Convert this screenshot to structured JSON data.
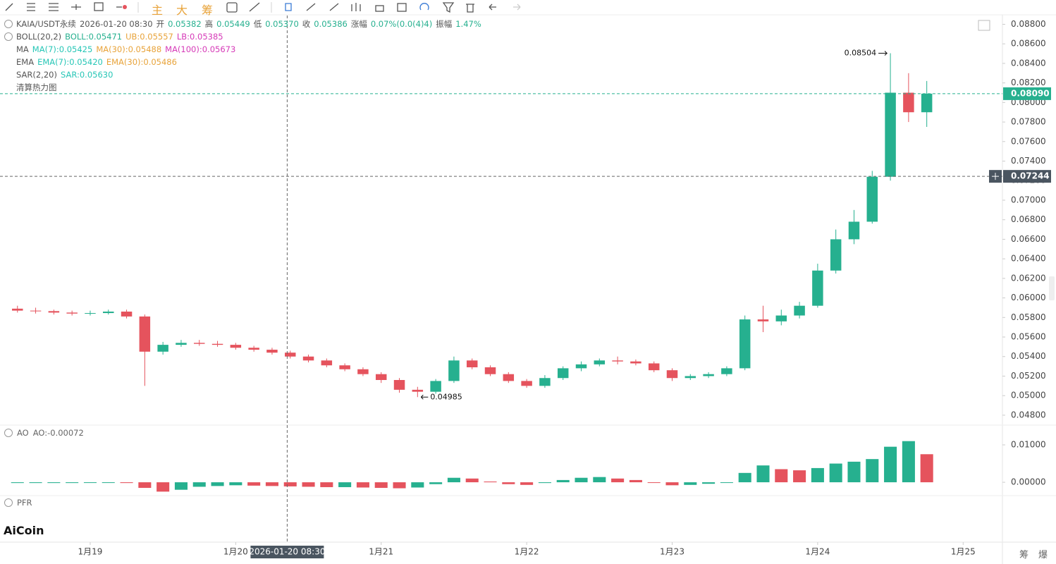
{
  "toolbar": {
    "buttons": [
      "主",
      "大",
      "筹"
    ]
  },
  "legend": {
    "symbol": "KAIA/USDT永续",
    "time": "2026-01-20 08:30",
    "open_label": "开",
    "open": "0.05382",
    "high_label": "高",
    "high": "0.05449",
    "low_label": "低",
    "low": "0.05370",
    "close_label": "收",
    "close": "0.05386",
    "change_label": "涨幅",
    "change": "0.07%(0.0(4)4)",
    "amplitude_label": "振幅",
    "amplitude": "1.47%",
    "boll": [
      "BOLL(20,2)",
      "BOLL:0.05471",
      "UB:0.05557",
      "LB:0.05385"
    ],
    "ma": [
      "MA",
      "MA(7):0.05425",
      "MA(30):0.05488",
      "MA(100):0.05673"
    ],
    "ema": [
      "EMA",
      "EMA(7):0.05420",
      "EMA(30):0.05486"
    ],
    "sar": [
      "SAR(2,20)",
      "SAR:0.05630"
    ],
    "heatmap": "清算热力图"
  },
  "sub_panels": {
    "ao": "AO",
    "ao_value": "AO:-0.00072",
    "pfr": "PFR"
  },
  "logo": "AiCoin",
  "footer": [
    "筹",
    "爆"
  ],
  "chart_data": {
    "type": "candlestick",
    "up_color": "#26b08f",
    "down_color": "#e5535d",
    "x": [
      18.5,
      18.625,
      18.75,
      18.875,
      19,
      19.125,
      19.25,
      19.375,
      19.5,
      19.625,
      19.75,
      19.875,
      20,
      20.125,
      20.25,
      20.375,
      20.5,
      20.625,
      20.75,
      20.875,
      21,
      21.125,
      21.25,
      21.375,
      21.5,
      21.625,
      21.75,
      21.875,
      22,
      22.125,
      22.25,
      22.375,
      22.5,
      22.625,
      22.75,
      22.875,
      23,
      23.125,
      23.25,
      23.375,
      23.5,
      23.625,
      23.75,
      23.875,
      24,
      24.125,
      24.25,
      24.375,
      24.5,
      24.625,
      24.75
    ],
    "open": [
      0.0589,
      0.0587,
      0.05865,
      0.0585,
      0.0584,
      0.05845,
      0.0586,
      0.0581,
      0.0545,
      0.0552,
      0.0554,
      0.0553,
      0.0552,
      0.0549,
      0.0547,
      0.0544,
      0.054,
      0.0536,
      0.0531,
      0.0527,
      0.0522,
      0.0516,
      0.0506,
      0.0504,
      0.0515,
      0.0536,
      0.0529,
      0.0522,
      0.0515,
      0.051,
      0.0518,
      0.0528,
      0.0532,
      0.0536,
      0.0535,
      0.0533,
      0.0526,
      0.0518,
      0.052,
      0.0522,
      0.0528,
      0.0578,
      0.0576,
      0.0582,
      0.0592,
      0.0628,
      0.066,
      0.0678,
      0.0724,
      0.081,
      0.079
    ],
    "high": [
      0.0592,
      0.059,
      0.0588,
      0.0587,
      0.0587,
      0.0588,
      0.0588,
      0.0583,
      0.0555,
      0.0557,
      0.0557,
      0.0556,
      0.0554,
      0.0551,
      0.0549,
      0.0546,
      0.0542,
      0.0538,
      0.0533,
      0.0529,
      0.0524,
      0.0518,
      0.0509,
      0.0517,
      0.054,
      0.0538,
      0.0531,
      0.0524,
      0.0517,
      0.0521,
      0.053,
      0.0535,
      0.0538,
      0.054,
      0.0537,
      0.0535,
      0.0528,
      0.0522,
      0.0524,
      0.053,
      0.0582,
      0.0592,
      0.0588,
      0.0596,
      0.0635,
      0.067,
      0.069,
      0.073,
      0.08504,
      0.083,
      0.0822
    ],
    "low": [
      0.0585,
      0.0584,
      0.0583,
      0.0582,
      0.0582,
      0.0583,
      0.0579,
      0.051,
      0.0542,
      0.055,
      0.0551,
      0.055,
      0.0547,
      0.0545,
      0.0542,
      0.0538,
      0.0534,
      0.0529,
      0.0525,
      0.052,
      0.0513,
      0.0503,
      0.04985,
      0.0502,
      0.0513,
      0.0527,
      0.052,
      0.0513,
      0.0508,
      0.0508,
      0.0516,
      0.0525,
      0.053,
      0.0532,
      0.0531,
      0.0524,
      0.0515,
      0.0516,
      0.0518,
      0.052,
      0.0526,
      0.0565,
      0.0572,
      0.0579,
      0.059,
      0.0625,
      0.0655,
      0.0676,
      0.072,
      0.078,
      0.0775
    ],
    "close": [
      0.0587,
      0.05865,
      0.0585,
      0.0584,
      0.05845,
      0.0586,
      0.0581,
      0.0545,
      0.0552,
      0.0554,
      0.0553,
      0.0552,
      0.0549,
      0.0547,
      0.0544,
      0.054,
      0.0536,
      0.0531,
      0.0527,
      0.0522,
      0.0516,
      0.0506,
      0.0504,
      0.0515,
      0.0536,
      0.0529,
      0.0522,
      0.0515,
      0.051,
      0.0518,
      0.0528,
      0.0532,
      0.0536,
      0.0535,
      0.0533,
      0.0526,
      0.0518,
      0.052,
      0.0522,
      0.0528,
      0.0578,
      0.0576,
      0.0582,
      0.0592,
      0.0628,
      0.066,
      0.0678,
      0.0724,
      0.081,
      0.079,
      0.0809
    ],
    "xlim": [
      18.38,
      25.27
    ],
    "xticks": [
      {
        "value": 19,
        "label": "1月19"
      },
      {
        "value": 20,
        "label": "1月20"
      },
      {
        "value": 21,
        "label": "1月21"
      },
      {
        "value": 22,
        "label": "1月22"
      },
      {
        "value": 23,
        "label": "1月23"
      },
      {
        "value": 24,
        "label": "1月24"
      },
      {
        "value": 25,
        "label": "1月25"
      }
    ],
    "ylim": [
      0.0472,
      0.0889
    ],
    "yticks": [
      {
        "value": 0.048,
        "label": "0.04800"
      },
      {
        "value": 0.05,
        "label": "0.05000"
      },
      {
        "value": 0.052,
        "label": "0.05200"
      },
      {
        "value": 0.054,
        "label": "0.05400"
      },
      {
        "value": 0.056,
        "label": "0.05600"
      },
      {
        "value": 0.058,
        "label": "0.05800"
      },
      {
        "value": 0.06,
        "label": "0.06000"
      },
      {
        "value": 0.062,
        "label": "0.06200"
      },
      {
        "value": 0.064,
        "label": "0.06400"
      },
      {
        "value": 0.066,
        "label": "0.06600"
      },
      {
        "value": 0.068,
        "label": "0.06800"
      },
      {
        "value": 0.07,
        "label": "0.07000"
      },
      {
        "value": 0.072,
        "label": "0.07200"
      },
      {
        "value": 0.074,
        "label": "0.07400"
      },
      {
        "value": 0.076,
        "label": "0.07600"
      },
      {
        "value": 0.078,
        "label": "0.07800"
      },
      {
        "value": 0.08,
        "label": "0.08000"
      },
      {
        "value": 0.082,
        "label": "0.08200"
      },
      {
        "value": 0.084,
        "label": "0.08400"
      },
      {
        "value": 0.086,
        "label": "0.08600"
      },
      {
        "value": 0.088,
        "label": "0.08800"
      }
    ],
    "last_price": {
      "value": 0.0809,
      "label": "0.08090",
      "color": "#26b08f"
    },
    "crosshair": {
      "x": 20.354,
      "x_label": "2026-01-20 08:30",
      "y": 0.07244
    },
    "max_marker": {
      "x": 24.5,
      "value": 0.08504
    },
    "min_marker": {
      "x": 21.25,
      "value": 0.04985
    },
    "ao": {
      "values": [
        -0.0002,
        -0.0002,
        -0.0002,
        -0.0002,
        -0.0001,
        -0.0001,
        -0.0002,
        -0.0015,
        -0.0025,
        -0.002,
        -0.0012,
        -0.001,
        -0.0008,
        -0.0009,
        -0.001,
        -0.0011,
        -0.0012,
        -0.0013,
        -0.0013,
        -0.0014,
        -0.0015,
        -0.0016,
        -0.0014,
        -0.0005,
        0.0012,
        0.001,
        0.0002,
        -0.0005,
        -0.0007,
        -0.0002,
        0.0006,
        0.0012,
        0.0014,
        0.001,
        0.0006,
        0,
        -0.0008,
        -0.0007,
        -0.0004,
        -0.0001,
        0.0025,
        0.0045,
        0.0035,
        0.0032,
        0.0038,
        0.005,
        0.0055,
        0.0062,
        0.0095,
        0.011,
        0.0075
      ],
      "ylim": [
        -0.003,
        0.0149
      ],
      "yticks": [
        {
          "value": 0,
          "label": "0.00000"
        },
        {
          "value": 0.01,
          "label": "0.01000"
        }
      ],
      "up_color": "#26b08f",
      "down_color": "#e5535d"
    }
  }
}
